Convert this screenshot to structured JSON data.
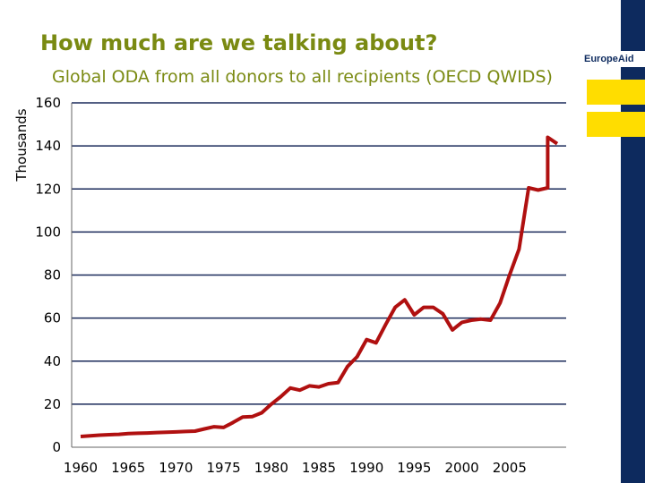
{
  "header": {
    "title": "How much are we talking about?",
    "subtitle": "Global ODA from all donors to all recipients (OECD QWIDS)"
  },
  "brand": {
    "label": "EuropeAid",
    "bar_color": "#0d2a5e",
    "accent_color": "#ffdd00"
  },
  "chart_data": {
    "type": "line",
    "title": "Global ODA from all donors to all recipients (OECD QWIDS)",
    "xlabel": "",
    "ylabel": "Thousands",
    "xlim": [
      1960,
      2009
    ],
    "ylim": [
      0,
      160
    ],
    "x_ticks": [
      1960,
      1965,
      1970,
      1975,
      1980,
      1985,
      1990,
      1995,
      2000,
      2005
    ],
    "y_ticks": [
      0,
      20,
      40,
      60,
      80,
      100,
      120,
      140,
      160
    ],
    "grid": true,
    "line_color": "#b01010",
    "x": [
      1960,
      1961,
      1962,
      1963,
      1964,
      1965,
      1966,
      1967,
      1968,
      1969,
      1970,
      1971,
      1972,
      1973,
      1974,
      1975,
      1976,
      1977,
      1978,
      1979,
      1980,
      1981,
      1982,
      1983,
      1984,
      1985,
      1986,
      1987,
      1988,
      1989,
      1990,
      1991,
      1992,
      1993,
      1994,
      1995,
      1996,
      1997,
      1998,
      1999,
      2000,
      2001,
      2002,
      2003,
      2004,
      2005,
      2006,
      2007,
      2008,
      2009
    ],
    "series": [
      {
        "values": [
          5.0,
          5.3,
          5.6,
          5.8,
          6.0,
          6.3,
          6.5,
          6.6,
          6.8,
          7.0,
          7.1,
          7.3,
          7.5,
          8.5,
          9.5,
          9.2,
          11.5,
          14.0,
          14.2,
          16.0,
          20.0,
          23.5,
          27.5,
          26.5,
          28.5,
          28.0,
          29.5,
          30.0,
          37.5,
          42.0,
          50.0,
          48.5,
          57.0,
          65.0,
          68.5,
          61.5,
          65.0,
          65.0,
          62.0,
          54.5,
          58.0,
          59.0,
          59.5,
          59.0,
          67.0,
          80.0,
          92.0,
          120.5,
          119.5,
          120.5
        ]
      },
      {
        "x": [
          2009,
          2010
        ],
        "values": [
          144.0,
          141.0
        ]
      }
    ]
  }
}
